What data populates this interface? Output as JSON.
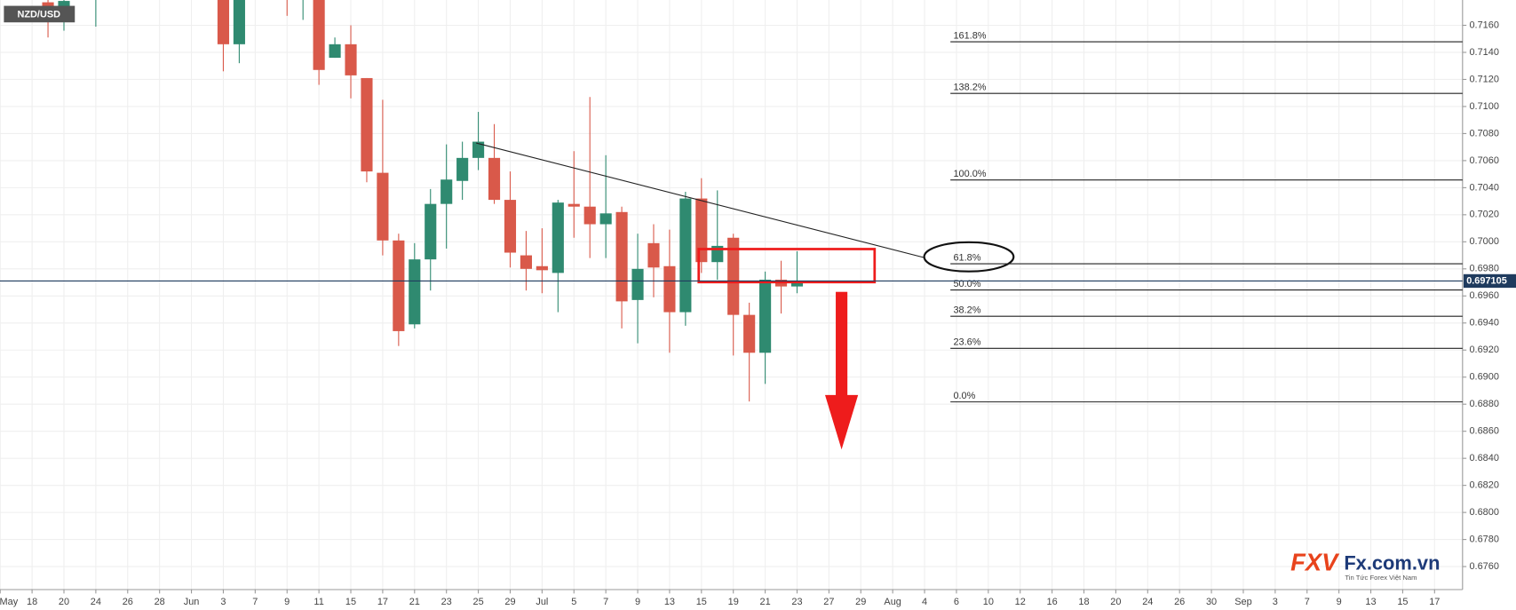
{
  "chart_data": {
    "type": "candlestick",
    "title": "NZD/USD",
    "ylim": [
      0.6743,
      0.71787
    ],
    "yticks": [
      {
        "value": 0.676,
        "label": "0.6760"
      },
      {
        "value": 0.678,
        "label": "0.6780"
      },
      {
        "value": 0.68,
        "label": "0.6800"
      },
      {
        "value": 0.682,
        "label": "0.6820"
      },
      {
        "value": 0.684,
        "label": "0.6840"
      },
      {
        "value": 0.686,
        "label": "0.6860"
      },
      {
        "value": 0.688,
        "label": "0.6880"
      },
      {
        "value": 0.69,
        "label": "0.6900"
      },
      {
        "value": 0.692,
        "label": "0.6920"
      },
      {
        "value": 0.694,
        "label": "0.6940"
      },
      {
        "value": 0.696,
        "label": "0.6960"
      },
      {
        "value": 0.698,
        "label": "0.6980"
      },
      {
        "value": 0.7,
        "label": "0.7000"
      },
      {
        "value": 0.702,
        "label": "0.7020"
      },
      {
        "value": 0.704,
        "label": "0.7040"
      },
      {
        "value": 0.706,
        "label": "0.7060"
      },
      {
        "value": 0.708,
        "label": "0.7080"
      },
      {
        "value": 0.71,
        "label": "0.7100"
      },
      {
        "value": 0.712,
        "label": "0.7120"
      },
      {
        "value": 0.714,
        "label": "0.7140"
      },
      {
        "value": 0.716,
        "label": "0.7160"
      }
    ],
    "categories": [
      "May",
      null,
      "18",
      null,
      "20",
      null,
      "24",
      null,
      "26",
      null,
      "28",
      null,
      "Jun",
      null,
      "3",
      null,
      "7",
      null,
      "9",
      null,
      "11",
      null,
      "15",
      null,
      "17",
      null,
      "21",
      null,
      "23",
      null,
      "25",
      null,
      "29",
      null,
      "Jul",
      null,
      "5",
      null,
      "7",
      null,
      "9",
      null,
      "13",
      null,
      "15",
      null,
      "19",
      null,
      "21",
      null,
      "23",
      null,
      "27",
      null,
      "29",
      null,
      "Aug",
      null,
      "4",
      null,
      "6",
      null,
      "10",
      null,
      "12",
      null,
      "16",
      null,
      "18",
      null,
      "20",
      null,
      "24",
      null,
      "26",
      null,
      "30",
      null,
      "Sep",
      null,
      "3",
      null,
      "7",
      null,
      "9",
      null,
      "13",
      null,
      "15",
      null,
      "17"
    ],
    "up_color": "#2f8a70",
    "down_color": "#d9594a",
    "candles": [
      null,
      null,
      null,
      {
        "open": 0.7177,
        "high": 0.718,
        "low": 0.7151,
        "close": 0.7173
      },
      {
        "open": 0.7173,
        "high": 0.718,
        "low": 0.7156,
        "close": 0.7178
      },
      null,
      {
        "open": 0.718,
        "high": 0.7185,
        "low": 0.7159,
        "close": 0.7182
      },
      null,
      null,
      null,
      null,
      null,
      null,
      null,
      {
        "open": 0.7185,
        "high": 0.719,
        "low": 0.7126,
        "close": 0.7146
      },
      {
        "open": 0.7146,
        "high": 0.7188,
        "low": 0.7132,
        "close": 0.7182
      },
      null,
      null,
      {
        "open": 0.7185,
        "high": 0.7188,
        "low": 0.7167,
        "close": 0.718
      },
      {
        "open": 0.718,
        "high": 0.7188,
        "low": 0.7164,
        "close": 0.7185
      },
      {
        "open": 0.7185,
        "high": 0.7188,
        "low": 0.7116,
        "close": 0.7127
      },
      {
        "open": 0.7136,
        "high": 0.7151,
        "low": 0.7136,
        "close": 0.7146
      },
      {
        "open": 0.7146,
        "high": 0.716,
        "low": 0.7106,
        "close": 0.7123
      },
      {
        "open": 0.7121,
        "high": 0.7121,
        "low": 0.7044,
        "close": 0.7052
      },
      {
        "open": 0.7051,
        "high": 0.7105,
        "low": 0.699,
        "close": 0.7001
      },
      {
        "open": 0.7001,
        "high": 0.7006,
        "low": 0.6923,
        "close": 0.6934
      },
      {
        "open": 0.6939,
        "high": 0.6999,
        "low": 0.6936,
        "close": 0.6987
      },
      {
        "open": 0.6987,
        "high": 0.7039,
        "low": 0.6964,
        "close": 0.7028
      },
      {
        "open": 0.7028,
        "high": 0.7072,
        "low": 0.6995,
        "close": 0.7046
      },
      {
        "open": 0.7045,
        "high": 0.7074,
        "low": 0.7031,
        "close": 0.7062
      },
      {
        "open": 0.7062,
        "high": 0.7096,
        "low": 0.7053,
        "close": 0.7074
      },
      {
        "open": 0.7062,
        "high": 0.7087,
        "low": 0.7028,
        "close": 0.7031
      },
      {
        "open": 0.7031,
        "high": 0.7052,
        "low": 0.6981,
        "close": 0.6992
      },
      {
        "open": 0.699,
        "high": 0.7008,
        "low": 0.6964,
        "close": 0.698
      },
      {
        "open": 0.6982,
        "high": 0.701,
        "low": 0.6962,
        "close": 0.6979
      },
      {
        "open": 0.6977,
        "high": 0.7031,
        "low": 0.6948,
        "close": 0.7029
      },
      {
        "open": 0.7028,
        "high": 0.7067,
        "low": 0.7003,
        "close": 0.7026
      },
      {
        "open": 0.7026,
        "high": 0.7107,
        "low": 0.6988,
        "close": 0.7013
      },
      {
        "open": 0.7013,
        "high": 0.7064,
        "low": 0.6988,
        "close": 0.7021
      },
      {
        "open": 0.7022,
        "high": 0.7026,
        "low": 0.6936,
        "close": 0.6956
      },
      {
        "open": 0.6957,
        "high": 0.7006,
        "low": 0.6925,
        "close": 0.698
      },
      {
        "open": 0.6999,
        "high": 0.7013,
        "low": 0.6959,
        "close": 0.6981
      },
      {
        "open": 0.6982,
        "high": 0.7009,
        "low": 0.6918,
        "close": 0.6948
      },
      {
        "open": 0.6948,
        "high": 0.7037,
        "low": 0.6938,
        "close": 0.7032
      },
      {
        "open": 0.7032,
        "high": 0.7047,
        "low": 0.6977,
        "close": 0.6985
      },
      {
        "open": 0.6985,
        "high": 0.7038,
        "low": 0.6972,
        "close": 0.6997
      },
      {
        "open": 0.7003,
        "high": 0.7006,
        "low": 0.6916,
        "close": 0.6946
      },
      {
        "open": 0.6946,
        "high": 0.6955,
        "low": 0.6882,
        "close": 0.6918
      },
      {
        "open": 0.6918,
        "high": 0.6978,
        "low": 0.6895,
        "close": 0.6972
      },
      {
        "open": 0.6972,
        "high": 0.6986,
        "low": 0.6947,
        "close": 0.6967
      },
      {
        "open": 0.6967,
        "high": 0.6993,
        "low": 0.6962,
        "close": 0.6971
      },
      null,
      null,
      null,
      null,
      null,
      null,
      null,
      null,
      null,
      null,
      null,
      null,
      null,
      null,
      null,
      null,
      null,
      null,
      null,
      null,
      null,
      null,
      null,
      null,
      null,
      null,
      null,
      null,
      null,
      null,
      null,
      null,
      null,
      null,
      null,
      null,
      null,
      null,
      null,
      null
    ],
    "last_price": {
      "value": 0.697105,
      "label": "0.697105",
      "color": "#1f3b5e"
    },
    "fib_levels": [
      {
        "label": "161.8%",
        "value": 0.71478
      },
      {
        "label": "138.2%",
        "value": 0.71097
      },
      {
        "label": "100.0%",
        "value": 0.70457
      },
      {
        "label": "61.8%",
        "value": 0.69838
      },
      {
        "label": "50.0%",
        "value": 0.69644
      },
      {
        "label": "38.2%",
        "value": 0.6945
      },
      {
        "label": "23.6%",
        "value": 0.69213
      },
      {
        "label": "0.0%",
        "value": 0.68817
      }
    ],
    "watermark": {
      "brand": "FXV",
      "site": "Fx.com.vn",
      "tagline": "Tin Tức Forex Việt Nam"
    },
    "grid": true
  }
}
